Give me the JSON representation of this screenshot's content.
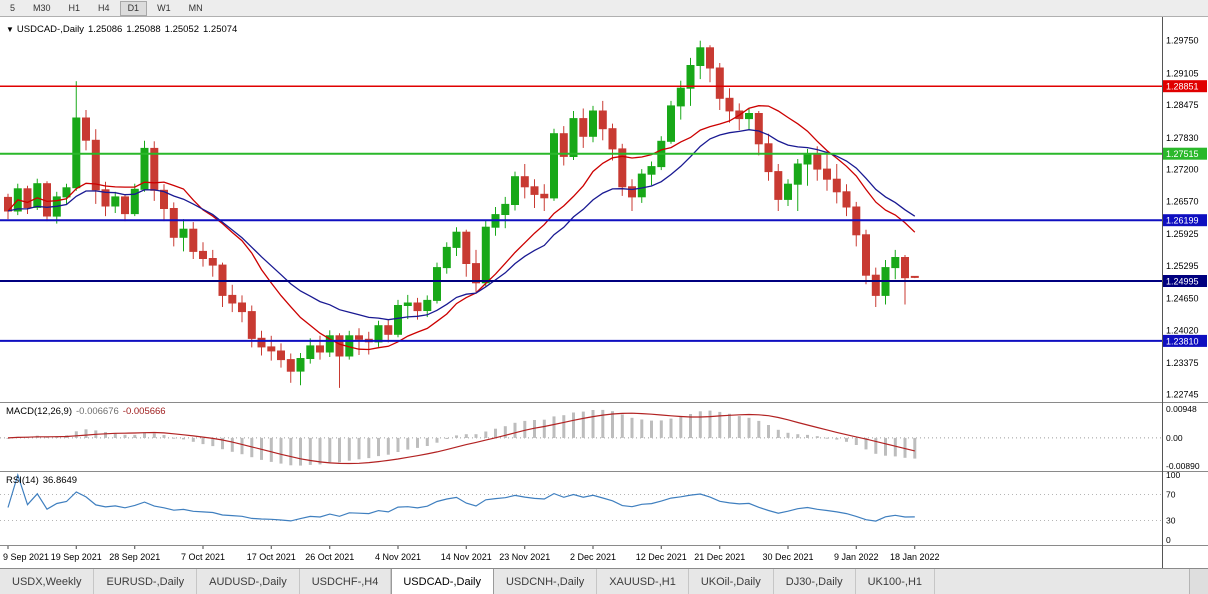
{
  "toolbar": {
    "timeframes": [
      "5",
      "M30",
      "H1",
      "H4",
      "D1",
      "W1",
      "MN"
    ],
    "active": "D1"
  },
  "title": {
    "arrow": "▼",
    "symbol": "USDCAD-,Daily",
    "open": "1.25086",
    "high": "1.25088",
    "low": "1.25052",
    "close": "1.25074"
  },
  "chart_data": {
    "type": "candlestick",
    "symbol": "USDCAD",
    "timeframe": "Daily",
    "price_range": {
      "min": 1.226,
      "max": 1.3022
    },
    "price_axis_labels": [
      "1.29750",
      "1.29105",
      "1.28475",
      "1.27830",
      "1.27200",
      "1.26570",
      "1.25925",
      "1.25295",
      "1.24650",
      "1.24020",
      "1.23375",
      "1.22745"
    ],
    "horizontal_levels": [
      {
        "price": 1.28851,
        "label": "1.28851",
        "color": "#e00000",
        "width": 1.5
      },
      {
        "price": 1.27515,
        "label": "1.27515",
        "color": "#2ab82a",
        "width": 2
      },
      {
        "price": 1.26199,
        "label": "1.26199",
        "color": "#0f0fc0",
        "width": 2
      },
      {
        "price": 1.24995,
        "label": "1.24995",
        "color": "#00007f",
        "width": 2
      },
      {
        "price": 1.2381,
        "label": "1.23810",
        "color": "#0f0fc0",
        "width": 2
      }
    ],
    "date_labels": [
      {
        "index": 0,
        "label": "9 Sep 2021"
      },
      {
        "index": 7,
        "label": "19 Sep 2021"
      },
      {
        "index": 13,
        "label": "28 Sep 2021"
      },
      {
        "index": 20,
        "label": "7 Oct 2021"
      },
      {
        "index": 27,
        "label": "17 Oct 2021"
      },
      {
        "index": 33,
        "label": "26 Oct 2021"
      },
      {
        "index": 40,
        "label": "4 Nov 2021"
      },
      {
        "index": 47,
        "label": "14 Nov 2021"
      },
      {
        "index": 53,
        "label": "23 Nov 2021"
      },
      {
        "index": 60,
        "label": "2 Dec 2021"
      },
      {
        "index": 67,
        "label": "12 Dec 2021"
      },
      {
        "index": 73,
        "label": "21 Dec 2021"
      },
      {
        "index": 80,
        "label": "30 Dec 2021"
      },
      {
        "index": 87,
        "label": "9 Jan 2022"
      },
      {
        "index": 93,
        "label": "18 Jan 2022"
      }
    ],
    "colors": {
      "up": "#18a818",
      "down": "#c83a32"
    },
    "moving_averages": [
      {
        "name": "ma-fast",
        "method": "sma",
        "period": 12,
        "color": "#cc0000"
      },
      {
        "name": "ma-slow",
        "method": "ema",
        "period": 20,
        "color": "#191992"
      }
    ],
    "candles": [
      [
        1.2665,
        1.2672,
        1.2622,
        1.2638
      ],
      [
        1.2638,
        1.2692,
        1.263,
        1.2682
      ],
      [
        1.2682,
        1.2688,
        1.2632,
        1.2645
      ],
      [
        1.2645,
        1.2702,
        1.264,
        1.2692
      ],
      [
        1.2692,
        1.2697,
        1.2618,
        1.2628
      ],
      [
        1.2628,
        1.2676,
        1.2613,
        1.2666
      ],
      [
        1.2666,
        1.2692,
        1.265,
        1.2684
      ],
      [
        1.2684,
        1.2895,
        1.2678,
        1.2822
      ],
      [
        1.2822,
        1.2838,
        1.2758,
        1.2778
      ],
      [
        1.2778,
        1.28,
        1.2652,
        1.268
      ],
      [
        1.268,
        1.2696,
        1.2628,
        1.2648
      ],
      [
        1.2648,
        1.2676,
        1.2634,
        1.2666
      ],
      [
        1.2666,
        1.2671,
        1.2618,
        1.2633
      ],
      [
        1.2633,
        1.2692,
        1.2628,
        1.2681
      ],
      [
        1.2681,
        1.2777,
        1.2676,
        1.2762
      ],
      [
        1.2762,
        1.2776,
        1.2658,
        1.2679
      ],
      [
        1.2679,
        1.2691,
        1.2618,
        1.2643
      ],
      [
        1.2643,
        1.2655,
        1.2568,
        1.2586
      ],
      [
        1.2586,
        1.2622,
        1.2558,
        1.2602
      ],
      [
        1.2602,
        1.2616,
        1.2543,
        1.2558
      ],
      [
        1.2558,
        1.2576,
        1.2528,
        1.2544
      ],
      [
        1.2544,
        1.2561,
        1.2508,
        1.2531
      ],
      [
        1.2531,
        1.2536,
        1.2448,
        1.2471
      ],
      [
        1.2471,
        1.2492,
        1.2438,
        1.2456
      ],
      [
        1.2456,
        1.2471,
        1.2418,
        1.2439
      ],
      [
        1.2439,
        1.2451,
        1.2368,
        1.2386
      ],
      [
        1.2386,
        1.2401,
        1.2352,
        1.2369
      ],
      [
        1.2369,
        1.2391,
        1.2342,
        1.2361
      ],
      [
        1.2361,
        1.2376,
        1.2328,
        1.2344
      ],
      [
        1.2344,
        1.2356,
        1.2298,
        1.2321
      ],
      [
        1.2321,
        1.2357,
        1.2293,
        1.2346
      ],
      [
        1.2346,
        1.2386,
        1.2336,
        1.2371
      ],
      [
        1.2371,
        1.2391,
        1.2344,
        1.2359
      ],
      [
        1.2359,
        1.2402,
        1.2349,
        1.2391
      ],
      [
        1.2391,
        1.2396,
        1.2288,
        1.2351
      ],
      [
        1.2351,
        1.2401,
        1.2344,
        1.2391
      ],
      [
        1.2391,
        1.2406,
        1.2353,
        1.2384
      ],
      [
        1.2384,
        1.2399,
        1.2354,
        1.2379
      ],
      [
        1.2379,
        1.2421,
        1.2369,
        1.2411
      ],
      [
        1.2411,
        1.2422,
        1.2378,
        1.2394
      ],
      [
        1.2394,
        1.2462,
        1.2388,
        1.2451
      ],
      [
        1.2451,
        1.2472,
        1.2424,
        1.2456
      ],
      [
        1.2456,
        1.2466,
        1.2423,
        1.2441
      ],
      [
        1.2441,
        1.2471,
        1.2428,
        1.2461
      ],
      [
        1.2461,
        1.2536,
        1.2455,
        1.2526
      ],
      [
        1.2526,
        1.2576,
        1.2514,
        1.2566
      ],
      [
        1.2566,
        1.2606,
        1.2549,
        1.2596
      ],
      [
        1.2596,
        1.2601,
        1.2508,
        1.2534
      ],
      [
        1.2534,
        1.2561,
        1.2478,
        1.2496
      ],
      [
        1.2496,
        1.2621,
        1.2489,
        1.2606
      ],
      [
        1.2606,
        1.2646,
        1.2589,
        1.2631
      ],
      [
        1.2631,
        1.2666,
        1.2604,
        1.2651
      ],
      [
        1.2651,
        1.2716,
        1.2639,
        1.2706
      ],
      [
        1.2706,
        1.2731,
        1.2663,
        1.2686
      ],
      [
        1.2686,
        1.2701,
        1.2644,
        1.2671
      ],
      [
        1.2671,
        1.2691,
        1.2638,
        1.2664
      ],
      [
        1.2664,
        1.2801,
        1.2658,
        1.2791
      ],
      [
        1.2791,
        1.2806,
        1.2728,
        1.2746
      ],
      [
        1.2746,
        1.2836,
        1.2739,
        1.2821
      ],
      [
        1.2821,
        1.2841,
        1.2763,
        1.2786
      ],
      [
        1.2786,
        1.2846,
        1.2774,
        1.2836
      ],
      [
        1.2836,
        1.2856,
        1.2778,
        1.2801
      ],
      [
        1.2801,
        1.2811,
        1.2738,
        1.2761
      ],
      [
        1.2761,
        1.2771,
        1.2668,
        1.2686
      ],
      [
        1.2686,
        1.2701,
        1.2638,
        1.2666
      ],
      [
        1.2666,
        1.2721,
        1.2654,
        1.2711
      ],
      [
        1.2711,
        1.2736,
        1.2689,
        1.2726
      ],
      [
        1.2726,
        1.2786,
        1.2719,
        1.2776
      ],
      [
        1.2776,
        1.2856,
        1.2771,
        1.2846
      ],
      [
        1.2846,
        1.2896,
        1.2819,
        1.2881
      ],
      [
        1.2881,
        1.2941,
        1.2846,
        1.2926
      ],
      [
        1.2926,
        1.2975,
        1.2899,
        1.2961
      ],
      [
        1.2961,
        1.2966,
        1.2893,
        1.2921
      ],
      [
        1.2921,
        1.2931,
        1.2838,
        1.2861
      ],
      [
        1.2861,
        1.2881,
        1.2813,
        1.2836
      ],
      [
        1.2836,
        1.2851,
        1.2798,
        1.2821
      ],
      [
        1.2821,
        1.2841,
        1.2799,
        1.2831
      ],
      [
        1.2831,
        1.2836,
        1.2748,
        1.2771
      ],
      [
        1.2771,
        1.2791,
        1.2698,
        1.2716
      ],
      [
        1.2716,
        1.2731,
        1.2638,
        1.2661
      ],
      [
        1.2661,
        1.2701,
        1.2648,
        1.2691
      ],
      [
        1.2691,
        1.2741,
        1.2638,
        1.2731
      ],
      [
        1.2731,
        1.2761,
        1.2688,
        1.2751
      ],
      [
        1.2751,
        1.2766,
        1.2698,
        1.2721
      ],
      [
        1.2721,
        1.2756,
        1.2678,
        1.2701
      ],
      [
        1.2701,
        1.2731,
        1.2653,
        1.2676
      ],
      [
        1.2676,
        1.2691,
        1.2628,
        1.2646
      ],
      [
        1.2646,
        1.2656,
        1.2568,
        1.2591
      ],
      [
        1.2591,
        1.2601,
        1.2493,
        1.2511
      ],
      [
        1.2511,
        1.2526,
        1.2448,
        1.2471
      ],
      [
        1.2471,
        1.2541,
        1.2453,
        1.2526
      ],
      [
        1.2526,
        1.2561,
        1.2503,
        1.2546
      ],
      [
        1.2546,
        1.2551,
        1.2453,
        1.2506
      ],
      [
        1.25086,
        1.25088,
        1.25052,
        1.25074
      ]
    ],
    "macd": {
      "label": "MACD(12,26,9)",
      "fast": 12,
      "slow": 26,
      "signal": 9,
      "value": "-0.006676",
      "signal_value": "-0.005666",
      "axis_labels": [
        "0.00948",
        "0.00",
        "-0.00890"
      ],
      "range": {
        "min": -0.0089,
        "max": 0.00948
      },
      "hist_color": "#bdbdbd",
      "signal_color": "#b22222"
    },
    "rsi": {
      "label": "RSI(14)",
      "period": 14,
      "value": "36.8649",
      "axis_labels": [
        "100",
        "70",
        "30",
        "0"
      ],
      "guide_levels": [
        70,
        30
      ],
      "line_color": "#3f7fbf"
    }
  },
  "tabs": {
    "items": [
      "USDX,Weekly",
      "EURUSD-,Daily",
      "AUDUSD-,Daily",
      "USDCHF-,H4",
      "USDCAD-,Daily",
      "USDCNH-,Daily",
      "XAUUSD-,H1",
      "UKOil-,Daily",
      "DJ30-,Daily",
      "UK100-,H1"
    ],
    "active_index": 4
  }
}
